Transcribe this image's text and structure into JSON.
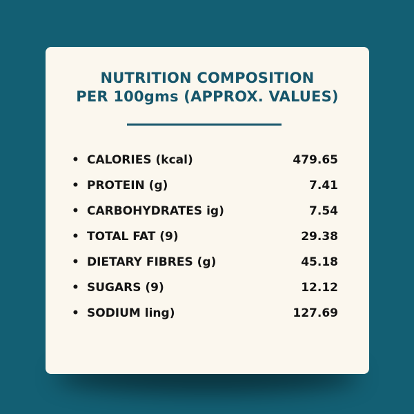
{
  "colors": {
    "background": "#135f73",
    "card": "#fbf7ee",
    "heading": "#17566b",
    "divider": "#17566b",
    "text": "#141414"
  },
  "card": {
    "heading_line1": "NUTRITION COMPOSITION",
    "heading_line2": "PER 100gms (APPROX. VALUES)"
  },
  "bullet_icon": "bullet-dot-icon",
  "nutrients": [
    {
      "name": "CALORIES (kcal)",
      "value": "479.65"
    },
    {
      "name": "PROTEIN (g)",
      "value": "7.41"
    },
    {
      "name": "CARBOHYDRATES ig)",
      "value": "7.54"
    },
    {
      "name": "TOTAL FAT (9)",
      "value": "29.38"
    },
    {
      "name": "DIETARY FIBRES (g)",
      "value": "45.18"
    },
    {
      "name": "SUGARS (9)",
      "value": "12.12"
    },
    {
      "name": "SODIUM ling)",
      "value": "127.69"
    }
  ]
}
